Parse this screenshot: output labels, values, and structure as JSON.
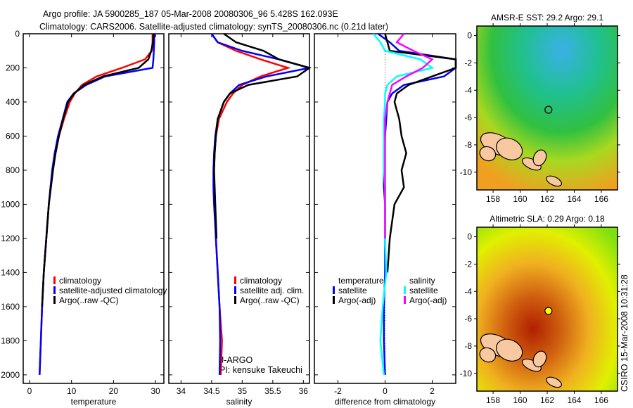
{
  "header": {
    "line1": "Argo profile: JA 5900285_187 05-Mar-2008 20080306_96 5.428S 162.093E",
    "line2": "Climatology: CARS2006. Satellite-adjusted climatology: synTS_20080306.nc (0.21d later)"
  },
  "side_stamp": "CSIRO 15-Mar-2008 10:31:28",
  "credit": {
    "line1": "J-ARGO",
    "line2": "PI: kensuke Takeuchi"
  },
  "colors": {
    "climatology": "#ff0000",
    "satellite": "#0000ff",
    "argo": "#000000",
    "sal_satellite": "#00ffff",
    "sal_argo": "#ff00ff"
  },
  "chart_data": [
    {
      "type": "line",
      "xlabel": "temperature",
      "ylim": [
        2050,
        0
      ],
      "xlim": [
        -1.5,
        32
      ],
      "xticks": [
        "0",
        "10",
        "20",
        "30"
      ],
      "xtick_values": [
        0,
        10,
        20,
        30
      ],
      "yticks": [
        "0",
        "200",
        "400",
        "600",
        "800",
        "1000",
        "1200",
        "1400",
        "1600",
        "1800",
        "2000"
      ],
      "ytick_values": [
        0,
        200,
        400,
        600,
        800,
        1000,
        1200,
        1400,
        1600,
        1800,
        2000
      ],
      "depth": [
        0,
        50,
        100,
        150,
        200,
        250,
        300,
        350,
        400,
        500,
        600,
        700,
        800,
        900,
        1000,
        1200,
        1400,
        1600,
        1800,
        2000
      ],
      "legend": [
        "climatology",
        "satellite-adjusted climatology",
        "Argo(..raw -QC)"
      ],
      "series": [
        {
          "name": "climatology",
          "color": "#ff0000",
          "values": [
            29.3,
            29.3,
            29.1,
            27.5,
            22,
            16,
            12.5,
            10.8,
            9.6,
            8.2,
            7.0,
            6.2,
            5.5,
            5.0,
            4.6,
            4.0,
            3.4,
            3.0,
            2.7,
            2.4
          ]
        },
        {
          "name": "satellite-adjusted climatology",
          "color": "#0000ff",
          "values": [
            29.7,
            29.7,
            29.6,
            29.5,
            29.3,
            18,
            13.5,
            10.5,
            9.0,
            7.9,
            6.8,
            6.0,
            5.4,
            5.0,
            4.6,
            4.0,
            3.4,
            3.0,
            2.7,
            2.4
          ]
        },
        {
          "name": "Argo(..raw -QC)",
          "color": "#000000",
          "values": [
            29.5,
            29.4,
            29.0,
            28.3,
            26,
            17.5,
            13,
            10.6,
            9.2,
            8.0,
            7.0,
            6.2,
            5.6,
            5.1,
            4.6,
            4.0,
            3.4,
            3.0,
            null,
            null
          ]
        }
      ]
    },
    {
      "type": "line",
      "xlabel": "salinity",
      "ylim": [
        2050,
        0
      ],
      "xlim": [
        33.8,
        36.1
      ],
      "xticks": [
        "34",
        "34.5",
        "35",
        "35.5",
        "36"
      ],
      "xtick_values": [
        34,
        34.5,
        35,
        35.5,
        36
      ],
      "depth": [
        0,
        50,
        100,
        150,
        200,
        250,
        300,
        350,
        400,
        500,
        600,
        700,
        800,
        900,
        1000,
        1200,
        1400,
        1600,
        1800,
        2000
      ],
      "legend": [
        "climatology",
        "satellite adj. clim.",
        "Argo(..raw -QC)"
      ],
      "series": [
        {
          "name": "climatology",
          "color": "#ff0000",
          "values": [
            34.5,
            34.6,
            34.9,
            35.3,
            35.75,
            35.3,
            35.0,
            34.85,
            34.75,
            34.62,
            34.57,
            34.55,
            34.54,
            34.54,
            34.55,
            34.57,
            34.6,
            34.63,
            34.67,
            34.65
          ]
        },
        {
          "name": "satellite adj. clim.",
          "color": "#0000ff",
          "values": [
            34.5,
            34.6,
            35.0,
            35.6,
            36.1,
            35.4,
            34.95,
            34.8,
            34.7,
            34.6,
            34.56,
            34.54,
            34.53,
            34.53,
            34.54,
            34.57,
            34.6,
            34.63,
            34.64,
            34.63
          ]
        },
        {
          "name": "Argo(..raw -QC)",
          "color": "#000000",
          "values": [
            34.7,
            34.9,
            35.35,
            35.6,
            36.1,
            35.9,
            35.1,
            34.8,
            34.7,
            34.6,
            34.57,
            34.55,
            34.54,
            34.55,
            34.56,
            34.58,
            null,
            null,
            null,
            null
          ]
        }
      ]
    },
    {
      "type": "line",
      "xlabel": "difference from climatology",
      "ylim": [
        2050,
        0
      ],
      "xlim": [
        -3,
        3
      ],
      "xticks": [
        "-2",
        "0",
        "2"
      ],
      "xtick_values": [
        -2,
        0,
        2
      ],
      "depth": [
        0,
        50,
        100,
        150,
        200,
        250,
        300,
        350,
        400,
        500,
        600,
        700,
        800,
        900,
        1000,
        1200,
        1400,
        1600,
        1800,
        2000
      ],
      "legend_headers": [
        "temperature",
        "salinity"
      ],
      "legend": [
        "satellite",
        "Argo(-adj)",
        "satellite",
        "Argo(-adj)"
      ],
      "series": [
        {
          "name": "temperature satellite",
          "color": "#0000ff",
          "values": [
            -0.3,
            0.2,
            0.6,
            3.0,
            3.0,
            2.5,
            0.8,
            0.3,
            0.1,
            0.05,
            0,
            -0.05,
            -0.05,
            -0.05,
            0,
            0,
            0,
            -0.05,
            -0.05,
            0
          ]
        },
        {
          "name": "temperature Argo(-adj)",
          "color": "#000000",
          "values": [
            0,
            0.1,
            0.2,
            3.0,
            3.0,
            2.0,
            1.0,
            0.5,
            0.4,
            0.6,
            0.7,
            0.9,
            0.7,
            0.8,
            0.4,
            0.2,
            0.1,
            null,
            null,
            null
          ]
        },
        {
          "name": "salinity satellite",
          "color": "#00ffff",
          "values": [
            -0.5,
            -0.2,
            0,
            1.5,
            2.0,
            0.5,
            0.1,
            0,
            0,
            -0.05,
            -0.05,
            -0.05,
            -0.05,
            0,
            0,
            0,
            0.05,
            -0.1,
            -0.2,
            -0.05
          ]
        },
        {
          "name": "salinity Argo(-adj)",
          "color": "#ff00ff",
          "values": [
            0.8,
            0.5,
            1.2,
            2.0,
            1.6,
            0.9,
            0.3,
            0.2,
            0.1,
            0,
            0,
            0,
            0,
            0,
            0,
            0,
            null,
            null,
            null,
            null
          ]
        }
      ]
    },
    {
      "type": "heatmap",
      "title": "AMSR-E SST: 29.2 Argo: 29.1",
      "xlim": [
        156.8,
        167.2
      ],
      "ylim": [
        -11.3,
        0.7
      ],
      "xticks": [
        "158",
        "160",
        "162",
        "164",
        "166"
      ],
      "xtick_values": [
        158,
        160,
        162,
        164,
        166
      ],
      "yticks": [
        "0",
        "-2",
        "-4",
        "-6",
        "-8",
        "-10"
      ],
      "ytick_values": [
        0,
        -2,
        -4,
        -6,
        -8,
        -10
      ],
      "marker": {
        "lon": 162.093,
        "lat": -5.428
      }
    },
    {
      "type": "heatmap",
      "title": "Altimetric SLA: 0.29 Argo: 0.18",
      "xlim": [
        156.8,
        167.2
      ],
      "ylim": [
        -11.3,
        0.7
      ],
      "xticks": [
        "158",
        "160",
        "162",
        "164",
        "166"
      ],
      "xtick_values": [
        158,
        160,
        162,
        164,
        166
      ],
      "yticks": [
        "0",
        "-2",
        "-4",
        "-6",
        "-8",
        "-10"
      ],
      "ytick_values": [
        0,
        -2,
        -4,
        -6,
        -8,
        -10
      ],
      "marker": {
        "lon": 162.093,
        "lat": -5.428
      }
    }
  ]
}
